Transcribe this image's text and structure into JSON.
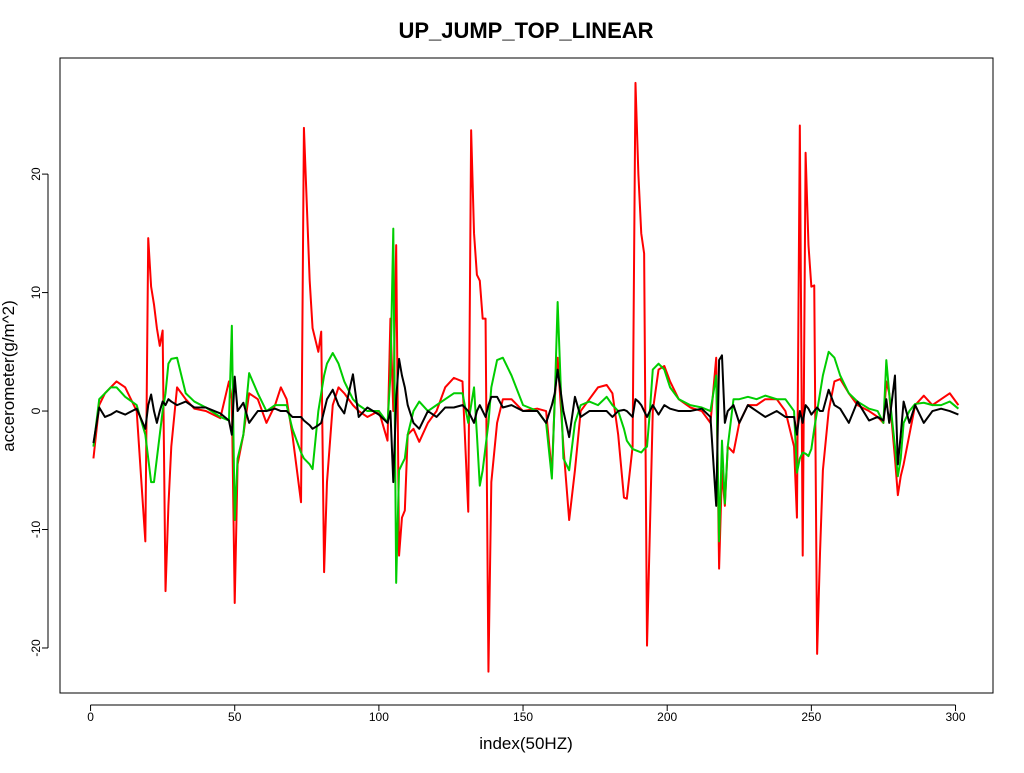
{
  "chart_data": {
    "type": "line",
    "title": "UP_JUMP_TOP_LINEAR",
    "x_label": "index(50HZ)",
    "y_label": "accerometer(g/m^2)",
    "x": [
      1,
      3,
      5,
      7,
      9,
      12,
      16,
      19,
      20,
      21,
      22,
      23,
      24,
      25,
      26,
      27,
      28,
      30,
      33,
      36,
      40,
      45,
      48,
      49,
      50,
      51,
      53,
      55,
      58,
      61,
      64,
      66,
      68,
      70,
      73,
      74,
      76,
      77,
      79,
      80,
      81,
      82,
      84,
      86,
      88,
      91,
      93,
      96,
      100,
      103,
      104,
      105,
      106,
      107,
      108,
      109,
      110,
      112,
      114,
      117,
      120,
      123,
      126,
      129,
      131,
      132,
      133,
      134,
      135,
      136,
      137,
      138,
      139,
      141,
      143,
      146,
      150,
      155,
      158,
      160,
      161,
      162,
      164,
      166,
      168,
      170,
      173,
      176,
      179,
      181,
      183,
      185,
      186,
      188,
      189,
      190,
      191,
      192,
      193,
      194,
      195,
      197,
      199,
      201,
      204,
      208,
      212,
      215,
      217,
      218,
      219,
      220,
      221,
      223,
      225,
      228,
      231,
      234,
      238,
      241,
      244,
      245,
      246,
      247,
      248,
      249,
      250,
      251,
      252,
      253,
      254,
      256,
      258,
      260,
      263,
      266,
      270,
      273,
      275,
      276,
      277,
      279,
      280,
      281,
      282,
      284,
      286,
      289,
      292,
      295,
      298,
      301
    ],
    "series": [
      {
        "color": "#ff0000",
        "values": [
          -4,
          0.5,
          1.5,
          2,
          2.5,
          2,
          0,
          -11,
          14.6,
          10.5,
          9,
          7,
          5.5,
          6.8,
          -15.2,
          -8,
          -3,
          2,
          1,
          0.2,
          0,
          -0.6,
          2.5,
          1,
          -16.2,
          -4.5,
          -2,
          1.5,
          1,
          -1,
          0.5,
          2,
          1,
          -2,
          -7.7,
          23.9,
          11,
          7,
          5,
          6.7,
          -13.6,
          -6,
          0.5,
          2,
          1.5,
          0.5,
          0,
          -0.5,
          0,
          -2.5,
          7.8,
          0,
          14,
          -12.2,
          -9,
          -8.4,
          -2,
          -1.5,
          -2.6,
          -1,
          0,
          2,
          2.8,
          2.5,
          -8.5,
          23.7,
          15,
          11.5,
          11,
          7.8,
          7.8,
          -22,
          -6,
          -1,
          1,
          1,
          0,
          0.2,
          0,
          -5.3,
          1,
          4.5,
          -3,
          -9.2,
          -5,
          0,
          1,
          2,
          2.2,
          1.5,
          -2,
          -7.3,
          -7.4,
          -3,
          27.7,
          20,
          15,
          13.3,
          -19.8,
          -10,
          0,
          3.5,
          3.8,
          2.5,
          1,
          0.3,
          0,
          -1,
          4.5,
          -13.3,
          -5,
          -8,
          -3,
          -3.5,
          -1,
          0.5,
          0.5,
          1,
          1,
          0,
          -3,
          -9,
          24.1,
          -12.2,
          21.8,
          14,
          10.5,
          10.6,
          -20.5,
          -12,
          -5,
          0,
          2.5,
          2.7,
          1.5,
          0.5,
          0,
          -0.5,
          -1,
          2.5,
          1.5,
          -4,
          -7.1,
          -5.5,
          -4.5,
          -2,
          0.5,
          1.3,
          0.5,
          1,
          1.5,
          0.5
        ]
      },
      {
        "color": "#00cd00",
        "values": [
          -3,
          1,
          1.5,
          2,
          2,
          1.2,
          0.5,
          -2,
          -4,
          -6,
          -6,
          -4,
          -2,
          0,
          1.5,
          4,
          4.4,
          4.5,
          1.5,
          0.8,
          0.3,
          -0.5,
          -0.8,
          7.2,
          -9.2,
          -4,
          -2,
          3.2,
          1.5,
          0,
          0.5,
          0.5,
          0.5,
          -1.5,
          -3.5,
          -4,
          -4.5,
          -4.9,
          0,
          1.5,
          3,
          4,
          4.9,
          4,
          2.5,
          1,
          0.5,
          0,
          0,
          -1,
          3,
          15.4,
          -14.5,
          -5,
          -4.5,
          -4,
          -2,
          0,
          0.8,
          0,
          0.5,
          1,
          1.5,
          1.5,
          -1,
          0.5,
          2,
          -2,
          -6.3,
          -5,
          -3,
          -1,
          2,
          4.3,
          4.5,
          3,
          0.5,
          0,
          -1,
          -5.7,
          1,
          9.2,
          -4,
          -5,
          -1,
          0.5,
          0.8,
          0.5,
          1.2,
          0.5,
          0,
          -1.5,
          -2.5,
          -3.2,
          -3.3,
          -3.4,
          -3.5,
          -3.2,
          -3,
          0,
          3.5,
          4,
          3.5,
          2,
          1,
          0.5,
          0.3,
          0,
          3,
          -11,
          -2.5,
          -7.8,
          -3,
          1,
          1,
          1.2,
          1,
          1.3,
          1,
          1,
          0,
          -5.2,
          -4,
          -3.5,
          -3.6,
          -3.8,
          -3.2,
          -1.5,
          0,
          1.5,
          3,
          5,
          4.5,
          3,
          1.5,
          0.8,
          0.2,
          0,
          -1,
          4.3,
          1.5,
          -3,
          -5.5,
          -4,
          -1,
          0,
          0.6,
          0.7,
          0.5,
          0.5,
          0.8,
          0.2
        ]
      },
      {
        "color": "#000000",
        "values": [
          -2.7,
          0.3,
          -0.5,
          -0.3,
          0,
          -0.3,
          0.2,
          -1.5,
          0.5,
          1.4,
          0,
          -1,
          0,
          0.8,
          0.5,
          1,
          0.8,
          0.5,
          0.8,
          0.3,
          0.3,
          -0.2,
          -0.8,
          -2,
          2.9,
          0,
          0.7,
          -1,
          0,
          0,
          0.2,
          0,
          0,
          -0.5,
          -0.5,
          -0.8,
          -1.2,
          -1.5,
          -1.2,
          -1,
          0,
          1,
          1.8,
          0.5,
          -0.2,
          3.1,
          -0.5,
          0.3,
          -0.3,
          -1,
          0,
          -6,
          1,
          4.4,
          3,
          2,
          0.5,
          -1,
          -1.5,
          0,
          -0.5,
          0.3,
          0.3,
          0.5,
          0,
          -0.5,
          -1,
          0,
          0.5,
          0,
          -0.5,
          0.5,
          1.2,
          1.2,
          0.3,
          0.5,
          0,
          0,
          -1,
          0.5,
          1.5,
          3.5,
          0,
          -2.2,
          1.2,
          -0.5,
          0,
          0,
          0,
          -0.5,
          0,
          0.1,
          0,
          -0.5,
          1,
          0.8,
          0.5,
          0,
          -0.5,
          0,
          0.5,
          -0.3,
          0.5,
          0.2,
          0,
          0,
          0.2,
          -0.5,
          -8,
          4.3,
          4.7,
          -1,
          0,
          0.5,
          -1,
          0.5,
          0,
          -0.5,
          0,
          -0.5,
          -0.5,
          -2,
          0,
          -1,
          0.5,
          0.2,
          -0.3,
          0,
          0.3,
          0,
          0,
          1.8,
          0.5,
          0.2,
          -1,
          0.8,
          -0.8,
          -0.5,
          -0.8,
          1,
          -1,
          3,
          -4.5,
          -2,
          0.8,
          -1,
          0.5,
          -1,
          0,
          0.2,
          0,
          -0.3
        ]
      }
    ],
    "xlim": [
      -10.6,
      313
    ],
    "ylim": [
      -23.8,
      29.8
    ],
    "xticks": [
      0,
      50,
      100,
      150,
      200,
      250,
      300
    ],
    "yticks": [
      -20,
      -10,
      0,
      10,
      20
    ]
  }
}
